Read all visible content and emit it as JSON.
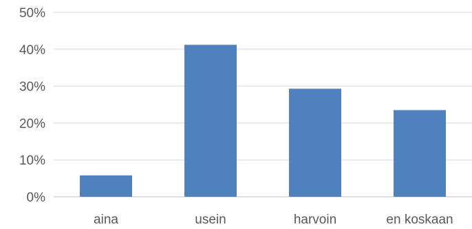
{
  "chart_data": {
    "type": "bar",
    "categories": [
      "aina",
      "usein",
      "harvoin",
      "en koskaan"
    ],
    "values": [
      5.8,
      41.2,
      29.3,
      23.5
    ],
    "y_ticks": [
      "0%",
      "10%",
      "20%",
      "30%",
      "40%",
      "50%"
    ],
    "ylim": [
      0,
      50
    ],
    "grid": true,
    "legend": "none",
    "colors": {
      "bar": "#4f81bd",
      "grid": "#d9d9d9",
      "axis": "#bfbfbf",
      "text": "#595959"
    }
  }
}
